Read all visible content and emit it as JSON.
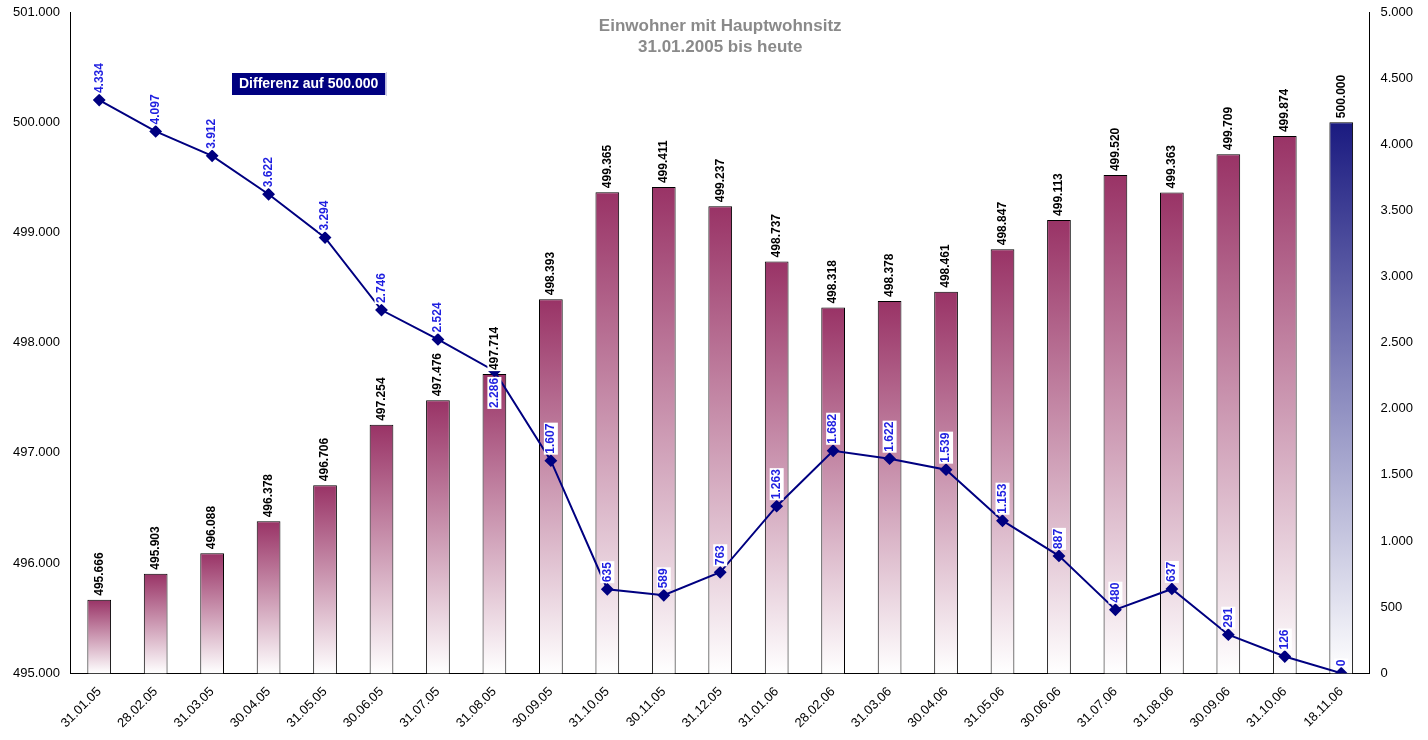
{
  "chart_data": {
    "type": "bar",
    "title": "Einwohner mit Hauptwohnsitz",
    "subtitle": "31.01.2005 bis heute",
    "categories": [
      "31.01.05",
      "28.02.05",
      "31.03.05",
      "30.04.05",
      "31.05.05",
      "30.06.05",
      "31.07.05",
      "31.08.05",
      "30.09.05",
      "31.10.05",
      "30.11.05",
      "31.12.05",
      "31.01.06",
      "28.02.06",
      "31.03.06",
      "30.04.06",
      "31.05.06",
      "30.06.06",
      "31.07.06",
      "31.08.06",
      "30.09.06",
      "31.10.06",
      "18.11.06"
    ],
    "series": [
      {
        "type": "bar",
        "colors": [
          "#993366",
          "#993366",
          "#993366",
          "#993366",
          "#993366",
          "#993366",
          "#993366",
          "#993366",
          "#993366",
          "#993366",
          "#993366",
          "#993366",
          "#993366",
          "#993366",
          "#993366",
          "#993366",
          "#993366",
          "#993366",
          "#993366",
          "#993366",
          "#993366",
          "#993366",
          "#1a1a80"
        ],
        "values": [
          495666,
          495903,
          496088,
          496378,
          496706,
          497254,
          497476,
          497714,
          498393,
          499365,
          499411,
          499237,
          498737,
          498318,
          498378,
          498461,
          498847,
          499113,
          499520,
          499363,
          499709,
          499874,
          500000
        ],
        "value_labels": [
          "495.666",
          "495.903",
          "496.088",
          "496.378",
          "496.706",
          "497.254",
          "497.476",
          "497.714",
          "498.393",
          "499.365",
          "499.411",
          "499.237",
          "498.737",
          "498.318",
          "498.378",
          "498.461",
          "498.847",
          "499.113",
          "499.520",
          "499.363",
          "499.709",
          "499.874",
          "500.000"
        ]
      },
      {
        "name": "Differenz auf 500.000",
        "type": "line",
        "axis": "y2",
        "color": "#000080",
        "marker": "diamond",
        "values": [
          4334,
          4097,
          3912,
          3622,
          3294,
          2746,
          2524,
          2286,
          1607,
          635,
          589,
          763,
          1263,
          1682,
          1622,
          1539,
          1153,
          887,
          480,
          637,
          291,
          126,
          0
        ],
        "value_labels": [
          "4.334",
          "4.097",
          "3.912",
          "3.622",
          "3.294",
          "2.746",
          "2.524",
          "2.286",
          "1.607",
          "635",
          "589",
          "763",
          "1.263",
          "1.682",
          "1.622",
          "1.539",
          "1.153",
          "887",
          "480",
          "637",
          "291",
          "126",
          "0"
        ]
      }
    ],
    "ylim": [
      495000,
      501000
    ],
    "yticks": [
      {
        "value": 495000,
        "label": "495.000"
      },
      {
        "value": 496000,
        "label": "496.000"
      },
      {
        "value": 497000,
        "label": "497.000"
      },
      {
        "value": 498000,
        "label": "498.000"
      },
      {
        "value": 499000,
        "label": "499.000"
      },
      {
        "value": 500000,
        "label": "500.000"
      },
      {
        "value": 501000,
        "label": "501.000"
      }
    ],
    "y2lim": [
      0,
      5000
    ],
    "y2ticks": [
      0,
      500,
      {
        "value": 1000,
        "label": "1.000"
      },
      {
        "value": 1500,
        "label": "1.500"
      },
      {
        "value": 2000,
        "label": "2.000"
      },
      {
        "value": 2500,
        "label": "2.500"
      },
      {
        "value": 3000,
        "label": "3.000"
      },
      {
        "value": 3500,
        "label": "3.500"
      },
      {
        "value": 4000,
        "label": "4.000"
      },
      {
        "value": 4500,
        "label": "4.500"
      },
      {
        "value": 5000,
        "label": "5.000"
      }
    ],
    "data_labels": true,
    "grid": false,
    "legend": "upper left"
  }
}
